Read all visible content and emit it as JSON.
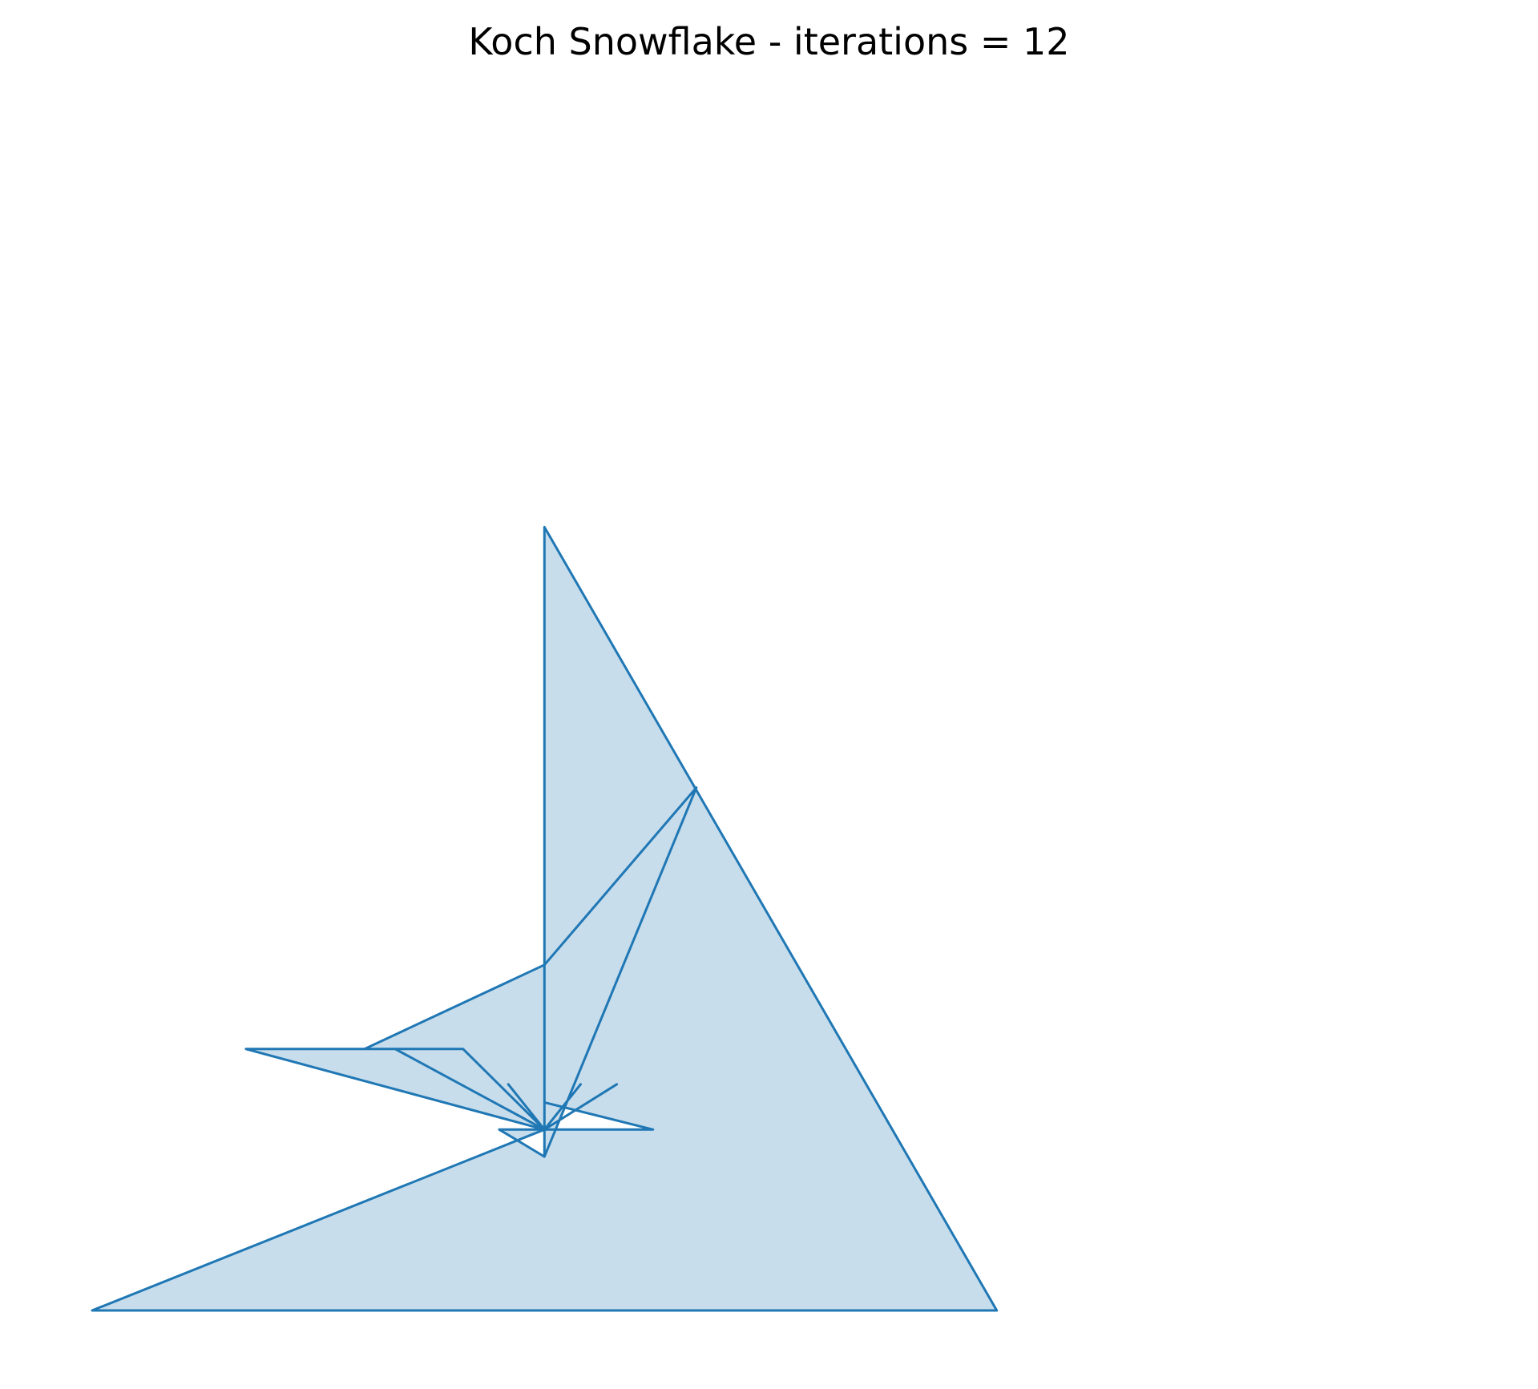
{
  "chart_data": {
    "type": "area",
    "title": "Koch Snowflake - iterations = 12",
    "xlabel": "",
    "ylabel": "",
    "axes_visible": false,
    "grid": false,
    "aspect": "equal",
    "xlim": [
      -0.5,
      1.5
    ],
    "ylim": [
      -0.29,
      1.155
    ],
    "fill_color": "#1f77b4",
    "fill_opacity": 0.25,
    "line_color": "#1f77b4",
    "series": [
      {
        "x": [
          0.0,
          1.0,
          0.5,
          0.5,
          0.668,
          0.5,
          0.301,
          0.335,
          0.5,
          0.41,
          0.335,
          0.17,
          0.5,
          0.46,
          0.5,
          0.54,
          0.5,
          0.5,
          0.45,
          0.5,
          0.5,
          0.62,
          0.5,
          0.58,
          0.5,
          0.0
        ],
        "y": [
          0.0,
          0.0,
          0.866,
          0.17,
          0.578,
          0.382,
          0.289,
          0.289,
          0.2,
          0.289,
          0.289,
          0.289,
          0.2,
          0.25,
          0.2,
          0.25,
          0.2,
          0.17,
          0.2,
          0.2,
          0.23,
          0.2,
          0.2,
          0.25,
          0.2,
          0.0
        ]
      }
    ]
  }
}
